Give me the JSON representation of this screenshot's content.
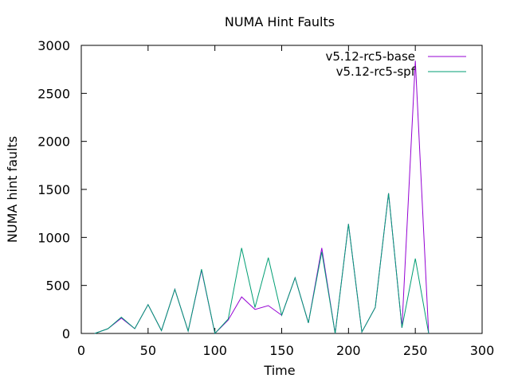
{
  "chart_data": {
    "type": "line",
    "title": "NUMA Hint Faults",
    "xlabel": "Time",
    "ylabel": "NUMA hint faults",
    "xlim": [
      0,
      300
    ],
    "ylim": [
      0,
      3000
    ],
    "xticks": [
      0,
      50,
      100,
      150,
      200,
      250,
      300
    ],
    "yticks": [
      0,
      500,
      1000,
      1500,
      2000,
      2500,
      3000
    ],
    "grid": false,
    "legend_position": "top-right",
    "series": [
      {
        "name": "v5.12-rc5-base",
        "color": "#9400d3",
        "x": [
          10,
          20,
          30,
          40,
          50,
          60,
          70,
          80,
          90,
          100,
          110,
          120,
          130,
          140,
          150,
          160,
          170,
          180,
          190,
          200,
          210,
          220,
          230,
          240,
          250,
          260
        ],
        "y": [
          0,
          50,
          160,
          50,
          300,
          30,
          460,
          25,
          660,
          0,
          140,
          380,
          250,
          290,
          190,
          580,
          110,
          890,
          0,
          1140,
          15,
          270,
          1460,
          60,
          2840,
          0
        ]
      },
      {
        "name": "v5.12-rc5-spf",
        "color": "#009e73",
        "x": [
          10,
          20,
          30,
          40,
          50,
          60,
          70,
          80,
          90,
          100,
          110,
          120,
          130,
          140,
          150,
          160,
          170,
          180,
          190,
          200,
          210,
          220,
          230,
          240,
          250,
          260
        ],
        "y": [
          0,
          50,
          170,
          50,
          300,
          30,
          460,
          25,
          670,
          0,
          150,
          890,
          270,
          790,
          190,
          580,
          110,
          850,
          0,
          1140,
          15,
          270,
          1460,
          60,
          780,
          0
        ]
      }
    ]
  }
}
